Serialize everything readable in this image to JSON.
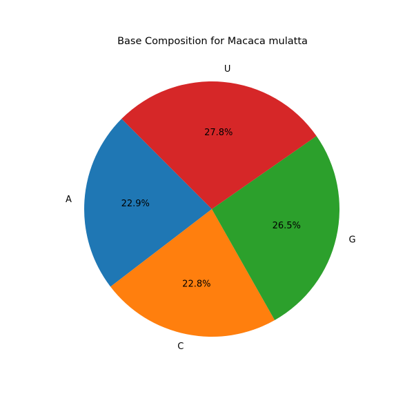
{
  "chart_data": {
    "type": "pie",
    "title": "Base Composition for Macaca mulatta",
    "categories": [
      "A",
      "C",
      "G",
      "U"
    ],
    "values": [
      22.9,
      22.8,
      26.5,
      27.8
    ],
    "percent_labels": [
      "22.9%",
      "22.8%",
      "26.5%",
      "27.8%"
    ],
    "colors": [
      "#1f77b4",
      "#ff7f0e",
      "#2ca02c",
      "#d62728"
    ],
    "start_angle_deg": 135,
    "direction": "counterclockwise",
    "legend": "none"
  }
}
